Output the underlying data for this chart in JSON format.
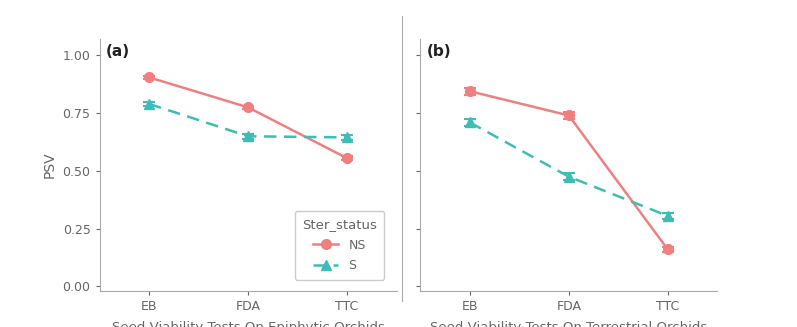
{
  "panel_a": {
    "title": "(a)",
    "xlabel": "Seed Viability Tests On Epiphytic Orchids",
    "ylabel": "PSV",
    "x_labels": [
      "EB",
      "FDA",
      "TTC"
    ],
    "NS": {
      "y": [
        0.905,
        0.775,
        0.555
      ],
      "yerr": [
        0.008,
        0.008,
        0.008
      ]
    },
    "S": {
      "y": [
        0.79,
        0.65,
        0.645
      ],
      "yerr": [
        0.008,
        0.01,
        0.01
      ]
    }
  },
  "panel_b": {
    "title": "(b)",
    "xlabel": "Seed Viability Tests On Terrestrial Orchids",
    "x_labels": [
      "EB",
      "FDA",
      "TTC"
    ],
    "NS": {
      "y": [
        0.845,
        0.74,
        0.16
      ],
      "yerr": [
        0.015,
        0.015,
        0.012
      ]
    },
    "S": {
      "y": [
        0.71,
        0.475,
        0.305
      ],
      "yerr": [
        0.015,
        0.015,
        0.012
      ]
    }
  },
  "ylim": [
    -0.02,
    1.07
  ],
  "yticks": [
    0.0,
    0.25,
    0.5,
    0.75,
    1.0
  ],
  "ns_color": "#F08080",
  "s_color": "#3DBDB5",
  "ns_marker": "o",
  "s_marker": "^",
  "markersize": 7,
  "linewidth": 1.8,
  "capsize": 4,
  "capthick": 1.5,
  "elinewidth": 1.5,
  "legend_title": "Ster_status",
  "background_color": "#FFFFFF",
  "spine_color": "#AAAAAA",
  "tick_color": "#666666",
  "label_color": "#666666",
  "title_color": "#222222"
}
